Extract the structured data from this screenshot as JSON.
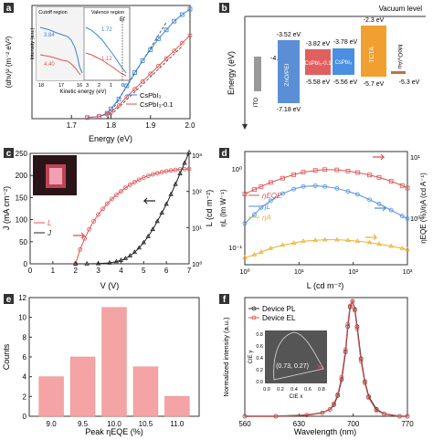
{
  "chart_data": [
    {
      "panel": "a",
      "type": "line",
      "xlabel": "Energy (eV)",
      "ylabel": "(αhν)² (m⁻² eV²)",
      "xlim": [
        1.6,
        2.0
      ],
      "xticks": [
        "1.7",
        "1.8",
        "1.9",
        "2.0"
      ],
      "legend": "bottom-right",
      "series": [
        {
          "name": "CsPbI₃",
          "color": "#3b82d6",
          "x": [
            1.74,
            1.77,
            1.79,
            1.8,
            1.82,
            1.84,
            1.86,
            1.88,
            1.9,
            1.92,
            1.94,
            1.96,
            1.98,
            2.0
          ],
          "y": [
            0.01,
            0.02,
            0.05,
            0.09,
            0.18,
            0.3,
            0.42,
            0.53,
            0.63,
            0.73,
            0.81,
            0.89,
            0.95,
            1.0
          ]
        },
        {
          "name": "CsPbI₃-0.1",
          "color": "#e05252",
          "x": [
            1.74,
            1.77,
            1.79,
            1.8,
            1.82,
            1.84,
            1.86,
            1.88,
            1.9,
            1.92,
            1.94,
            1.96,
            1.98,
            2.0
          ],
          "y": [
            0.01,
            0.02,
            0.04,
            0.06,
            0.12,
            0.2,
            0.27,
            0.34,
            0.41,
            0.48,
            0.55,
            0.62,
            0.69,
            0.76
          ]
        }
      ],
      "inset": {
        "xlabel": "Kinetic energy (eV)",
        "ylabel": "Intensity (a.u.)",
        "regions": [
          "Cutoff region",
          "Valence region"
        ],
        "xticks": [
          "18",
          "17",
          "16",
          "3",
          "2",
          "1",
          "0"
        ],
        "annotations": [
          "3.84",
          "4.40",
          "1.72",
          "1.12",
          "Ef"
        ]
      }
    },
    {
      "panel": "b",
      "type": "diagram",
      "ylabel": "Energy (eV)",
      "top_label": "Vacuum level",
      "layers": [
        {
          "name": "ITO",
          "lumo": "-4.6 eV",
          "homo": "",
          "color": "#aaaaaa"
        },
        {
          "name": "ZnO/PEI",
          "lumo": "-3.52 eV",
          "homo": "-7.18 eV",
          "color": "#5a8fd6"
        },
        {
          "name": "CsPbI₃-0.1",
          "lumo": "-3.82 eV",
          "homo": "-5.58 eV",
          "color": "#e06060"
        },
        {
          "name": "CsPbI₃",
          "lumo": "-3.78 eV",
          "homo": "-5.56 eV",
          "color": "#4a8fe0"
        },
        {
          "name": "TCTA",
          "lumo": "-2.3 eV",
          "homo": "-5.7 eV",
          "color": "#f0a030"
        },
        {
          "name": "MoO₃/Au",
          "lumo": "",
          "homo": "-5.3 eV",
          "color": "#c07040"
        }
      ]
    },
    {
      "panel": "c",
      "type": "line",
      "xlabel": "V (V)",
      "ylabel": "J (mA cm⁻²)",
      "y2label": "L (cd m⁻²)",
      "xlim": [
        0,
        7
      ],
      "ylim": [
        0,
        250
      ],
      "y2lim": [
        1,
        1000
      ],
      "xticks": [
        "0",
        "1",
        "2",
        "3",
        "4",
        "5",
        "6",
        "7"
      ],
      "yticks": [
        "0",
        "50",
        "100",
        "150",
        "200",
        "250"
      ],
      "y2ticks": [
        "10⁰",
        "10¹",
        "10²",
        "10³"
      ],
      "legend": "center-left",
      "series": [
        {
          "name": "L",
          "color": "#e05252",
          "axis": "right",
          "x": [
            2.0,
            2.2,
            2.4,
            2.6,
            2.8,
            3.0,
            3.2,
            3.4,
            3.6,
            3.8,
            4.0,
            4.2,
            4.4,
            4.6,
            4.8,
            5.0,
            5.2,
            5.4,
            5.6,
            5.8,
            6.0,
            6.2,
            6.4,
            6.6,
            6.8,
            7.0
          ],
          "y": [
            1,
            2.5,
            5,
            9,
            15,
            23,
            33,
            46,
            62,
            80,
            100,
            125,
            152,
            180,
            210,
            240,
            268,
            295,
            318,
            340,
            360,
            378,
            392,
            404,
            412,
            418
          ]
        },
        {
          "name": "J",
          "color": "#222222",
          "axis": "left",
          "x": [
            2.0,
            2.5,
            3.0,
            3.5,
            3.8,
            4.0,
            4.2,
            4.4,
            4.6,
            4.8,
            5.0,
            5.2,
            5.4,
            5.6,
            5.8,
            6.0,
            6.2,
            6.4,
            6.6,
            6.8,
            7.0
          ],
          "y": [
            0,
            0,
            0.5,
            2,
            5,
            8,
            12,
            18,
            26,
            36,
            48,
            62,
            78,
            96,
            115,
            135,
            157,
            180,
            204,
            228,
            252
          ]
        }
      ]
    },
    {
      "panel": "d",
      "type": "line",
      "xlabel": "L (cd m⁻²)",
      "ylabel": "ηL (lm W⁻¹)",
      "y2label": "ηEQE (%)/ηA (cd A⁻¹)",
      "xscale": "log",
      "xlim": [
        1,
        1000
      ],
      "xticks": [
        "10⁰",
        "10¹",
        "10²",
        "10³"
      ],
      "yticks": [
        "10⁻¹",
        "10⁰"
      ],
      "y2ticks": [
        "10⁰",
        "10¹"
      ],
      "legend": "center-left",
      "series": [
        {
          "name": "ηEQE",
          "color": "#e05252",
          "x": [
            1,
            1.5,
            2,
            3,
            5,
            8,
            12,
            20,
            30,
            50,
            80,
            120,
            200,
            300,
            500,
            800,
            1000
          ],
          "y": [
            5,
            5.8,
            6.4,
            7.3,
            8.4,
            9.4,
            10.2,
            10.8,
            11.1,
            11.0,
            10.6,
            10.1,
            9.3,
            8.6,
            7.6,
            6.6,
            6.1
          ]
        },
        {
          "name": "ηL",
          "color": "#4a8fe0",
          "x": [
            1,
            1.5,
            2,
            3,
            5,
            8,
            12,
            20,
            30,
            50,
            80,
            120,
            200,
            300,
            500,
            800,
            1000
          ],
          "y": [
            0.3,
            0.4,
            0.5,
            0.62,
            0.78,
            0.9,
            0.98,
            1.0,
            0.98,
            0.92,
            0.84,
            0.76,
            0.64,
            0.56,
            0.46,
            0.38,
            0.35
          ]
        },
        {
          "name": "ηA",
          "color": "#f0b030",
          "x": [
            1,
            1.5,
            2,
            3,
            5,
            8,
            12,
            20,
            30,
            50,
            80,
            120,
            200,
            300,
            500,
            800,
            1000
          ],
          "y": [
            0.1,
            0.11,
            0.12,
            0.135,
            0.15,
            0.16,
            0.17,
            0.175,
            0.178,
            0.178,
            0.175,
            0.17,
            0.163,
            0.155,
            0.145,
            0.135,
            0.13
          ]
        }
      ]
    },
    {
      "panel": "e",
      "type": "bar",
      "xlabel": "Peak ηEQE (%)",
      "ylabel": "Counts",
      "categories": [
        "9.0",
        "9.5",
        "10.0",
        "10.5",
        "11.0"
      ],
      "values": [
        4,
        6,
        11,
        5,
        2
      ],
      "ylim": [
        0,
        12
      ],
      "yticks": [
        "0",
        "2",
        "4",
        "6",
        "8",
        "10",
        "12"
      ],
      "bar_color": "#f4a4a4"
    },
    {
      "panel": "f",
      "type": "line",
      "xlabel": "Wavelength (nm)",
      "ylabel": "Normalized intensity (a.u.)",
      "xlim": [
        560,
        770
      ],
      "ylim": [
        0,
        1
      ],
      "xticks": [
        "560",
        "630",
        "700",
        "770"
      ],
      "legend": "top-left",
      "series": [
        {
          "name": "Device PL",
          "color": "#333333",
          "x": [
            560,
            600,
            640,
            660,
            670,
            675,
            680,
            685,
            690,
            693,
            696,
            699,
            702,
            705,
            710,
            715,
            720,
            730,
            740,
            760,
            770
          ],
          "y": [
            0,
            0,
            0.01,
            0.03,
            0.06,
            0.1,
            0.18,
            0.32,
            0.56,
            0.78,
            0.95,
            1.0,
            0.93,
            0.78,
            0.5,
            0.3,
            0.17,
            0.06,
            0.02,
            0,
            0
          ]
        },
        {
          "name": "Device EL",
          "color": "#e05252",
          "x": [
            560,
            600,
            640,
            660,
            670,
            675,
            680,
            685,
            690,
            693,
            696,
            699,
            702,
            705,
            710,
            715,
            720,
            730,
            740,
            760,
            770
          ],
          "y": [
            0,
            0,
            0.01,
            0.03,
            0.06,
            0.11,
            0.19,
            0.34,
            0.58,
            0.8,
            0.96,
            1.0,
            0.92,
            0.76,
            0.48,
            0.29,
            0.16,
            0.05,
            0.02,
            0,
            0
          ]
        }
      ],
      "inset": {
        "xlabel": "CIE x",
        "ylabel": "CIE y",
        "point_label": "(0.73, 0.27)",
        "xticks": [
          "0.0",
          "0.2",
          "0.4",
          "0.6",
          "0.8"
        ],
        "yticks": [
          "0.0",
          "0.2",
          "0.4",
          "0.6",
          "0.8"
        ]
      }
    }
  ]
}
